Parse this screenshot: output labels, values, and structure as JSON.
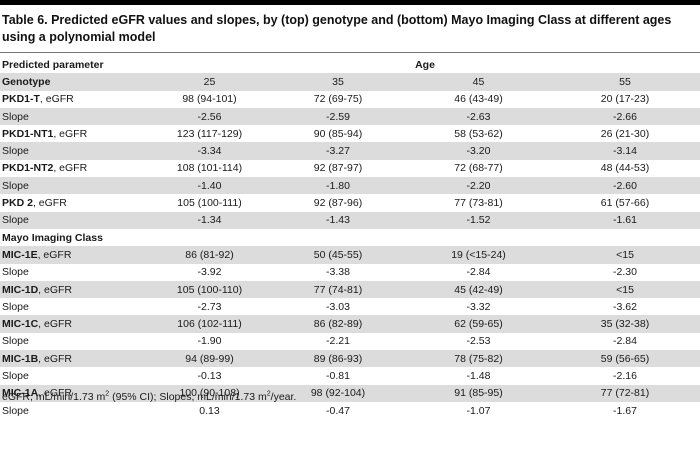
{
  "title": "Table 6. Predicted eGFR values and slopes, by (top) genotype and (bottom) Mayo Imaging Class at different ages using a polynomial model",
  "header": {
    "param_label": "Predicted parameter",
    "age_label": "Age"
  },
  "ages_row": {
    "label": "Genotype",
    "values": [
      "25",
      "35",
      "45",
      "55"
    ]
  },
  "genotype_rows": [
    {
      "bold": "PKD1-T",
      "suffix": ", eGFR",
      "values": [
        "98 (94-101)",
        "72 (69-75)",
        "46 (43-49)",
        "20 (17-23)"
      ]
    },
    {
      "bold": "",
      "suffix": "Slope",
      "values": [
        "-2.56",
        "-2.59",
        "-2.63",
        "-2.66"
      ]
    },
    {
      "bold": "PKD1-NT1",
      "suffix": ", eGFR",
      "values": [
        "123 (117-129)",
        "90 (85-94)",
        "58 (53-62)",
        "26 (21-30)"
      ]
    },
    {
      "bold": "",
      "suffix": "Slope",
      "values": [
        "-3.34",
        "-3.27",
        "-3.20",
        "-3.14"
      ]
    },
    {
      "bold": "PKD1-NT2",
      "suffix": ", eGFR",
      "values": [
        "108 (101-114)",
        "92 (87-97)",
        "72 (68-77)",
        "48 (44-53)"
      ]
    },
    {
      "bold": "",
      "suffix": "Slope",
      "values": [
        "-1.40",
        "-1.80",
        "-2.20",
        "-2.60"
      ]
    },
    {
      "bold": "PKD 2",
      "suffix": ", eGFR",
      "values": [
        "105 (100-111)",
        "92 (87-96)",
        "77 (73-81)",
        "61 (57-66)"
      ]
    },
    {
      "bold": "",
      "suffix": "Slope",
      "values": [
        "-1.34",
        "-1.43",
        "-1.52",
        "-1.61"
      ]
    }
  ],
  "mayo_label": "Mayo Imaging Class",
  "mayo_rows": [
    {
      "bold": "MIC-1E",
      "suffix": ", eGFR",
      "values": [
        "86 (81-92)",
        "50 (45-55)",
        "19 (<15-24)",
        "<15"
      ]
    },
    {
      "bold": "",
      "suffix": "Slope",
      "values": [
        "-3.92",
        "-3.38",
        "-2.84",
        "-2.30"
      ]
    },
    {
      "bold": "MIC-1D",
      "suffix": ", eGFR",
      "values": [
        "105 (100-110)",
        "77 (74-81)",
        "45 (42-49)",
        "<15"
      ]
    },
    {
      "bold": "",
      "suffix": "Slope",
      "values": [
        "-2.73",
        "-3.03",
        "-3.32",
        "-3.62"
      ]
    },
    {
      "bold": "MIC-1C",
      "suffix": ", eGFR",
      "values": [
        "106 (102-111)",
        "86 (82-89)",
        "62 (59-65)",
        "35 (32-38)"
      ]
    },
    {
      "bold": "",
      "suffix": "Slope",
      "values": [
        "-1.90",
        "-2.21",
        "-2.53",
        "-2.84"
      ]
    },
    {
      "bold": "MIC-1B",
      "suffix": ", eGFR",
      "values": [
        "94 (89-99)",
        "89 (86-93)",
        "78 (75-82)",
        "59 (56-65)"
      ]
    },
    {
      "bold": "",
      "suffix": "Slope",
      "values": [
        "-0.13",
        "-0.81",
        "-1.48",
        "-2.16"
      ]
    },
    {
      "bold": "MIC-1A",
      "suffix": ", eGFR",
      "values": [
        "100 (90-108)",
        "98 (92-104)",
        "91 (85-95)",
        "77 (72-81)"
      ]
    },
    {
      "bold": "",
      "suffix": "Slope",
      "values": [
        "0.13",
        "-0.47",
        "-1.07",
        "-1.67"
      ]
    }
  ],
  "footnote": {
    "part1": "eGFR, mL/min/1.73 m",
    "sup1": "2",
    "part2": " (95% CI); Slopes, mL/min/1.73 m",
    "sup2": "2",
    "part3": "/year."
  },
  "colors": {
    "row_shade": "#dcdcdc",
    "top_bar": "#000000"
  }
}
